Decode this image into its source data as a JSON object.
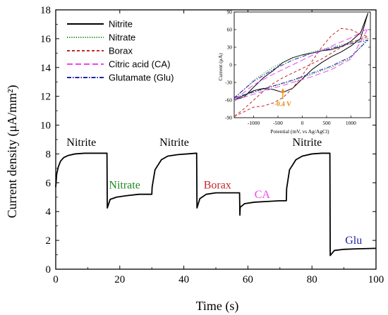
{
  "chart_data": [
    {
      "type": "line",
      "title": "",
      "xlabel": "Time (s)",
      "ylabel": "Current density (μA/mm²)",
      "xlim": [
        0,
        100
      ],
      "ylim": [
        0,
        18
      ],
      "xticks": [
        0,
        20,
        40,
        60,
        80,
        100
      ],
      "yticks": [
        0,
        2,
        4,
        6,
        8,
        10,
        12,
        14,
        16,
        18
      ],
      "grid": false,
      "legend_position": "top-left",
      "legend": [
        {
          "label": "Nitrite",
          "color": "#000000",
          "dash": "solid"
        },
        {
          "label": "Nitrate",
          "color": "#1a8a1a",
          "dash": "dotted"
        },
        {
          "label": "Borax",
          "color": "#c0282d",
          "dash": "dashed"
        },
        {
          "label": "Citric acid (CA)",
          "color": "#ee44ee",
          "dash": "long-dashed"
        },
        {
          "label": "Glutamate (Glu)",
          "color": "#2222aa",
          "dash": "dash-dot"
        }
      ],
      "series": [
        {
          "name": "Nitrite",
          "color": "#000000",
          "x": [
            0,
            0.3,
            0.8,
            1.5,
            2.5,
            4,
            6,
            9,
            12,
            15.5,
            16,
            16.1,
            17,
            19,
            22,
            26,
            30,
            30.1,
            31,
            33,
            35,
            38,
            41,
            43.8,
            44.0,
            44.1,
            45,
            47,
            50,
            54,
            57.4,
            57.5,
            57.6,
            59,
            62,
            66,
            70,
            72,
            72.1,
            73,
            75,
            77,
            80,
            83,
            85.4,
            85.6,
            85.7,
            87,
            90,
            95,
            100
          ],
          "y": [
            5.7,
            6.6,
            7.1,
            7.5,
            7.75,
            7.9,
            8.0,
            8.05,
            8.05,
            8.05,
            8.05,
            4.25,
            4.85,
            5.0,
            5.1,
            5.2,
            5.2,
            5.7,
            6.9,
            7.6,
            7.85,
            7.95,
            8.0,
            8.05,
            8.05,
            4.25,
            4.9,
            5.2,
            5.3,
            5.3,
            5.3,
            3.75,
            4.3,
            4.55,
            4.65,
            4.7,
            4.75,
            4.75,
            5.6,
            6.9,
            7.6,
            7.85,
            8.0,
            8.05,
            8.05,
            8.05,
            0.95,
            1.3,
            1.38,
            1.42,
            1.45
          ]
        }
      ],
      "annotations": [
        {
          "text": "Nitrite",
          "x": 8,
          "y": 8.55,
          "color": "#000000"
        },
        {
          "text": "Nitrate",
          "x": 21.5,
          "y": 5.6,
          "color": "#1a8a1a"
        },
        {
          "text": "Nitrite",
          "x": 37,
          "y": 8.55,
          "color": "#000000"
        },
        {
          "text": "Borax",
          "x": 50.5,
          "y": 5.6,
          "color": "#c0282d"
        },
        {
          "text": "CA",
          "x": 64.5,
          "y": 4.95,
          "color": "#ee44ee"
        },
        {
          "text": "Nitrite",
          "x": 78.5,
          "y": 8.55,
          "color": "#000000"
        },
        {
          "text": "Glu",
          "x": 93,
          "y": 1.75,
          "color": "#2222aa"
        }
      ]
    },
    {
      "type": "line",
      "title": "",
      "xlabel": "Potential (mV, vs Ag/AgCl)",
      "ylabel": "Current (μA)",
      "xlim": [
        -1400,
        1400
      ],
      "ylim": [
        -90,
        90
      ],
      "xticks": [
        -1000,
        -500,
        0,
        500,
        1000
      ],
      "yticks": [
        -90,
        -60,
        -30,
        0,
        30,
        60,
        90
      ],
      "grid": false,
      "annotation": {
        "text": "-0.4 V",
        "x": -400,
        "y": -58,
        "color": "#e88a0a"
      },
      "series": [
        {
          "name": "Nitrite",
          "color": "#000000",
          "x": [
            -1400,
            -1200,
            -1000,
            -800,
            -600,
            -400,
            -200,
            0,
            200,
            400,
            600,
            800,
            1000,
            1200,
            1350,
            1200,
            1000,
            800,
            600,
            400,
            200,
            0,
            -200,
            -400,
            -600,
            -800,
            -1000,
            -1200,
            -1400
          ],
          "y": [
            -60,
            -52,
            -44,
            -40,
            -42,
            -47,
            -40,
            -24,
            -8,
            4,
            14,
            22,
            32,
            45,
            88,
            55,
            40,
            31,
            26,
            24,
            20,
            17,
            12,
            4,
            -10,
            -22,
            -38,
            -55,
            -60
          ]
        },
        {
          "name": "Nitrate",
          "color": "#1a8a1a",
          "x": [
            -1400,
            -1000,
            -600,
            -200,
            200,
            600,
            1000,
            1350,
            1000,
            600,
            200,
            -200,
            -600,
            -1000,
            -1400
          ],
          "y": [
            -58,
            -47,
            -37,
            -27,
            -16,
            -4,
            12,
            45,
            38,
            30,
            22,
            12,
            -4,
            -26,
            -58
          ]
        },
        {
          "name": "Borax",
          "color": "#c0282d",
          "x": [
            -1400,
            -1200,
            -1000,
            -800,
            -600,
            -400,
            -200,
            0,
            200,
            400,
            600,
            800,
            1000,
            1200,
            1350,
            1200,
            1000,
            800,
            600,
            400,
            200,
            0,
            -200,
            -400,
            -600,
            -800,
            -1000,
            -1200,
            -1400
          ],
          "y": [
            -88,
            -80,
            -72,
            -70,
            -65,
            -56,
            -40,
            -18,
            6,
            30,
            50,
            62,
            60,
            52,
            48,
            44,
            38,
            30,
            20,
            10,
            2,
            -6,
            -14,
            -22,
            -32,
            -45,
            -60,
            -75,
            -88
          ]
        },
        {
          "name": "Citric acid (CA)",
          "color": "#ee44ee",
          "x": [
            -1400,
            -1000,
            -600,
            -200,
            200,
            600,
            1000,
            1350,
            1000,
            600,
            200,
            -200,
            -600,
            -1000,
            -1400
          ],
          "y": [
            -60,
            -50,
            -40,
            -30,
            -20,
            -8,
            10,
            62,
            46,
            32,
            16,
            0,
            -16,
            -34,
            -60
          ]
        },
        {
          "name": "Glutamate (Glu)",
          "color": "#2222aa",
          "x": [
            -1400,
            -1000,
            -600,
            -200,
            200,
            600,
            1000,
            1350,
            1000,
            600,
            200,
            -200,
            -600,
            -1000,
            -1400
          ],
          "y": [
            -56,
            -46,
            -36,
            -26,
            -14,
            -2,
            14,
            42,
            36,
            28,
            20,
            8,
            -8,
            -28,
            -56
          ]
        }
      ]
    }
  ]
}
